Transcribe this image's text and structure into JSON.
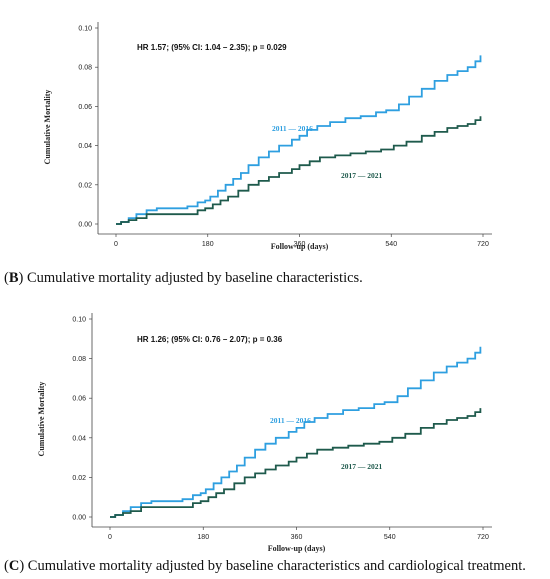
{
  "colors": {
    "series_2011_2016": "#2e9fe0",
    "series_2017_2021": "#1e5a4c",
    "axis": "#444444"
  },
  "captions": [
    {
      "letter": "B",
      "text": " Cumulative mortality adjusted by baseline characteristics."
    },
    {
      "letter": "C",
      "text": " Cumulative mortality adjusted by baseline characteristics and cardiological treatment."
    }
  ],
  "chart_data": [
    {
      "type": "line",
      "title": "",
      "annotation": "HR 1.57; (95% CI: 1.04 – 2.35); p = 0.029",
      "xlabel": "Follow-up (days)",
      "ylabel": "Cumulative Mortality",
      "xlim": [
        0,
        720
      ],
      "ylim": [
        0,
        0.1
      ],
      "xticks": [
        0,
        180,
        360,
        540,
        720
      ],
      "yticks": [
        0.0,
        0.02,
        0.04,
        0.06,
        0.08,
        0.1
      ],
      "ytick_labels": [
        "0.00",
        "0.02",
        "0.04",
        "0.06",
        "0.08",
        "0.10"
      ],
      "grid": false,
      "series": [
        {
          "name": "2011 — 2016",
          "x": [
            0,
            10,
            25,
            40,
            60,
            80,
            100,
            140,
            160,
            175,
            185,
            200,
            215,
            230,
            245,
            260,
            280,
            300,
            320,
            345,
            360,
            375,
            395,
            420,
            450,
            480,
            510,
            530,
            555,
            575,
            600,
            625,
            650,
            670,
            690,
            705,
            715
          ],
          "y": [
            0.0,
            0.001,
            0.003,
            0.005,
            0.007,
            0.008,
            0.008,
            0.009,
            0.011,
            0.012,
            0.014,
            0.017,
            0.02,
            0.023,
            0.026,
            0.03,
            0.034,
            0.037,
            0.04,
            0.043,
            0.045,
            0.048,
            0.05,
            0.052,
            0.054,
            0.055,
            0.057,
            0.058,
            0.061,
            0.065,
            0.069,
            0.073,
            0.076,
            0.078,
            0.08,
            0.083,
            0.086
          ]
        },
        {
          "name": "2017 — 2021",
          "x": [
            0,
            10,
            25,
            40,
            60,
            80,
            100,
            140,
            160,
            175,
            190,
            205,
            220,
            240,
            260,
            280,
            300,
            320,
            345,
            360,
            380,
            400,
            430,
            460,
            490,
            520,
            545,
            570,
            600,
            625,
            650,
            670,
            690,
            705,
            715
          ],
          "y": [
            0.0,
            0.001,
            0.002,
            0.003,
            0.005,
            0.005,
            0.005,
            0.005,
            0.007,
            0.008,
            0.01,
            0.012,
            0.014,
            0.017,
            0.02,
            0.022,
            0.024,
            0.026,
            0.028,
            0.03,
            0.032,
            0.034,
            0.035,
            0.036,
            0.037,
            0.038,
            0.04,
            0.042,
            0.045,
            0.047,
            0.049,
            0.05,
            0.051,
            0.053,
            0.055
          ]
        }
      ]
    },
    {
      "type": "line",
      "title": "",
      "annotation": "HR 1.26; (95% CI: 0.76 – 2.07); p = 0.36",
      "xlabel": "Follow-up (days)",
      "ylabel": "Cumulative Mortality",
      "xlim": [
        0,
        720
      ],
      "ylim": [
        0,
        0.1
      ],
      "xticks": [
        0,
        180,
        360,
        540,
        720
      ],
      "yticks": [
        0.0,
        0.02,
        0.04,
        0.06,
        0.08,
        0.1
      ],
      "ytick_labels": [
        "0.00",
        "0.02",
        "0.04",
        "0.06",
        "0.08",
        "0.10"
      ],
      "grid": false,
      "series": [
        {
          "name": "2011 — 2016",
          "x": [
            0,
            10,
            25,
            40,
            60,
            80,
            100,
            140,
            160,
            175,
            185,
            200,
            215,
            230,
            245,
            260,
            280,
            300,
            320,
            345,
            360,
            375,
            395,
            420,
            450,
            480,
            510,
            530,
            555,
            575,
            600,
            625,
            650,
            670,
            690,
            705,
            715
          ],
          "y": [
            0.0,
            0.001,
            0.003,
            0.005,
            0.007,
            0.008,
            0.008,
            0.009,
            0.011,
            0.012,
            0.014,
            0.017,
            0.02,
            0.023,
            0.026,
            0.03,
            0.034,
            0.037,
            0.04,
            0.043,
            0.045,
            0.048,
            0.05,
            0.052,
            0.054,
            0.055,
            0.057,
            0.058,
            0.061,
            0.065,
            0.069,
            0.073,
            0.076,
            0.078,
            0.08,
            0.083,
            0.086
          ]
        },
        {
          "name": "2017 — 2021",
          "x": [
            0,
            10,
            25,
            40,
            60,
            80,
            100,
            140,
            160,
            175,
            190,
            205,
            220,
            240,
            260,
            280,
            300,
            320,
            345,
            360,
            380,
            400,
            430,
            460,
            490,
            520,
            545,
            570,
            600,
            625,
            650,
            670,
            690,
            705,
            715
          ],
          "y": [
            0.0,
            0.001,
            0.002,
            0.003,
            0.005,
            0.005,
            0.005,
            0.005,
            0.007,
            0.008,
            0.01,
            0.012,
            0.014,
            0.017,
            0.02,
            0.022,
            0.024,
            0.026,
            0.028,
            0.03,
            0.032,
            0.034,
            0.035,
            0.036,
            0.037,
            0.038,
            0.04,
            0.042,
            0.045,
            0.047,
            0.049,
            0.05,
            0.051,
            0.053,
            0.055
          ]
        }
      ]
    }
  ]
}
